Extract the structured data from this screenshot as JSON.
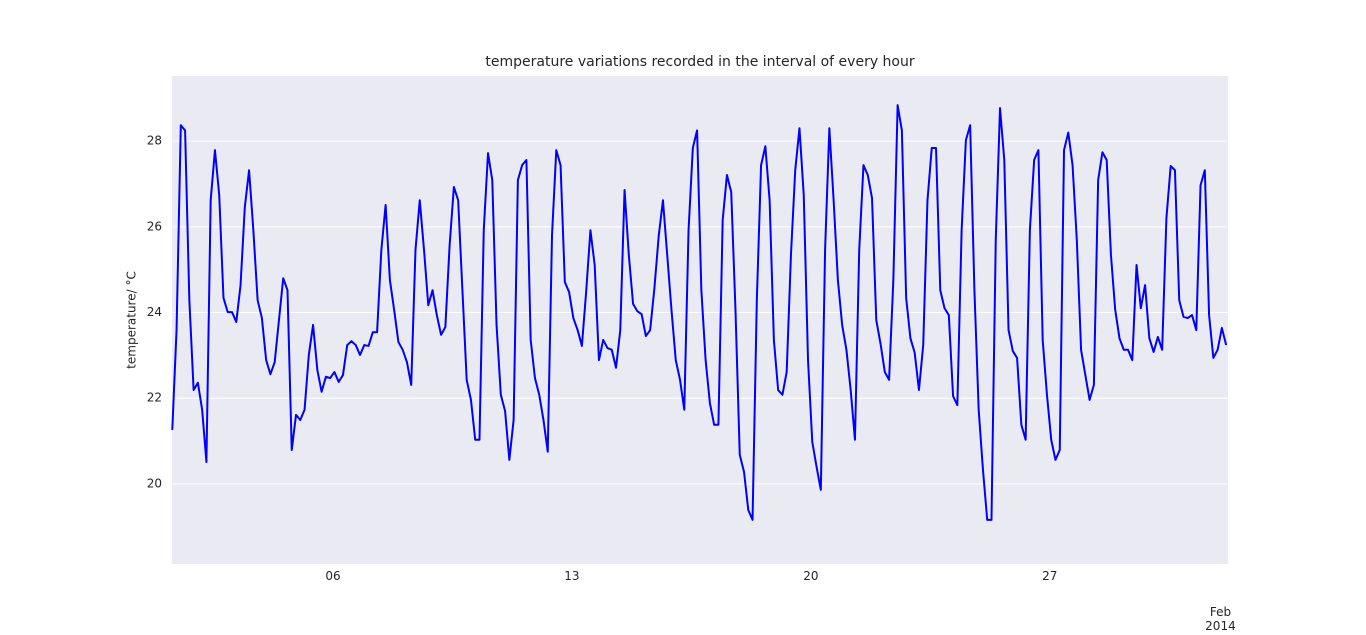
{
  "chart_data": {
    "type": "line",
    "title": "temperature variations recorded in the interval of every hour",
    "ylabel": "temperature/ °C",
    "x": [
      7,
      10,
      13,
      16,
      19,
      22,
      25,
      28,
      31,
      34,
      37,
      40,
      43,
      46,
      49,
      52,
      55,
      58,
      61,
      64,
      67,
      70,
      73,
      76,
      79,
      82,
      85,
      88,
      91,
      94,
      97,
      100,
      103,
      106,
      109,
      112,
      115,
      118,
      121,
      124,
      127,
      130,
      133,
      136,
      139,
      142,
      145,
      148,
      151,
      154,
      157,
      160,
      163,
      166,
      169,
      172,
      175,
      178,
      181,
      184,
      187,
      190,
      193,
      196,
      199,
      202,
      205,
      208,
      211,
      214,
      217,
      220,
      223,
      226,
      229,
      232,
      235,
      238,
      241,
      244,
      247,
      250,
      253,
      256,
      259,
      262,
      265,
      268,
      271,
      274,
      277,
      280,
      283,
      286,
      289,
      292,
      295,
      298,
      301,
      304,
      307,
      310,
      313,
      316,
      319,
      322,
      325,
      328,
      331,
      334,
      337,
      340,
      343,
      346,
      349,
      352,
      355,
      358,
      361,
      364,
      367,
      370,
      373,
      376,
      379,
      382,
      385,
      388,
      391,
      394,
      397,
      400,
      403,
      406,
      409,
      412,
      415,
      418,
      421,
      424,
      427,
      430,
      433,
      436,
      439,
      442,
      445,
      448,
      451,
      454,
      457,
      460,
      463,
      466,
      469,
      472,
      475,
      478,
      481,
      484,
      487,
      490,
      493,
      496,
      499,
      502,
      505,
      508,
      511,
      514,
      517,
      520,
      523,
      526,
      529,
      532,
      535,
      538,
      541,
      544,
      547,
      550,
      553,
      556,
      559,
      562,
      565,
      568,
      571,
      574,
      577,
      580,
      583,
      586,
      589,
      592,
      595,
      598,
      601,
      604,
      607,
      610,
      613,
      616,
      619,
      622,
      625,
      628,
      631,
      634,
      637,
      640,
      643,
      646,
      649,
      652,
      655,
      658,
      661,
      664,
      667,
      670,
      673,
      676,
      679,
      682,
      685,
      688,
      691,
      694,
      697,
      700,
      703,
      706,
      709,
      712,
      715,
      718,
      721,
      724,
      727,
      730,
      733,
      736,
      739,
      742,
      745,
      748
    ],
    "series": [
      {
        "name": "temperature",
        "color": "#0000ff",
        "values": [
          21.26,
          23.59,
          28.37,
          28.25,
          24.29,
          22.19,
          22.36,
          21.73,
          20.51,
          26.62,
          27.79,
          26.74,
          24.34,
          24.01,
          24.01,
          23.78,
          24.64,
          26.46,
          27.32,
          25.92,
          24.29,
          23.87,
          22.89,
          22.56,
          22.84,
          23.82,
          24.8,
          24.52,
          20.79,
          21.61,
          21.49,
          21.73,
          23.01,
          23.71,
          22.66,
          22.15,
          22.5,
          22.47,
          22.61,
          22.38,
          22.54,
          23.24,
          23.33,
          23.24,
          23.01,
          23.24,
          23.22,
          23.54,
          23.54,
          25.46,
          26.51,
          24.76,
          24.06,
          23.31,
          23.13,
          22.84,
          22.31,
          25.46,
          26.62,
          25.46,
          24.17,
          24.52,
          23.94,
          23.48,
          23.66,
          25.57,
          26.93,
          26.62,
          24.52,
          22.43,
          21.96,
          21.03,
          21.03,
          25.92,
          27.72,
          27.09,
          23.71,
          22.08,
          21.7,
          20.56,
          21.49,
          27.09,
          27.44,
          27.56,
          23.36,
          22.47,
          22.08,
          21.49,
          20.75,
          25.81,
          27.79,
          27.44,
          24.71,
          24.48,
          23.87,
          23.59,
          23.22,
          24.48,
          25.92,
          25.11,
          22.89,
          23.36,
          23.17,
          23.13,
          22.71,
          23.59,
          26.86,
          25.34,
          24.2,
          24.03,
          23.96,
          23.45,
          23.59,
          24.57,
          25.78,
          26.62,
          25.34,
          24.06,
          22.89,
          22.43,
          21.73,
          25.92,
          27.84,
          28.25,
          24.52,
          22.89,
          21.89,
          21.38,
          21.38,
          26.16,
          27.21,
          26.81,
          24.06,
          20.68,
          20.28,
          19.39,
          19.16,
          24.29,
          27.44,
          27.88,
          26.62,
          23.36,
          22.19,
          22.08,
          22.61,
          25.34,
          27.32,
          28.3,
          26.74,
          22.89,
          20.98,
          20.4,
          19.86,
          25.46,
          28.3,
          26.62,
          24.76,
          23.71,
          23.13,
          22.19,
          21.03,
          25.46,
          27.44,
          27.21,
          26.67,
          23.82,
          23.27,
          22.61,
          22.43,
          24.76,
          28.84,
          28.25,
          24.34,
          23.4,
          23.06,
          22.19,
          23.24,
          26.62,
          27.84,
          27.84,
          24.52,
          24.1,
          23.94,
          22.05,
          21.84,
          25.92,
          28.02,
          28.37,
          24.52,
          21.73,
          20.33,
          19.16,
          19.16,
          25.69,
          28.77,
          27.56,
          23.59,
          23.1,
          22.94,
          21.38,
          21.03,
          25.92,
          27.56,
          27.79,
          23.36,
          22.08,
          21.03,
          20.56,
          20.79,
          27.79,
          28.2,
          27.44,
          25.69,
          23.13,
          22.54,
          21.96,
          22.31,
          27.09,
          27.74,
          27.56,
          25.34,
          24.06,
          23.4,
          23.13,
          23.13,
          22.89,
          25.11,
          24.1,
          24.64,
          23.4,
          23.08,
          23.43,
          23.13,
          26.2,
          27.42,
          27.32,
          24.29,
          23.9,
          23.87,
          23.94,
          23.59,
          26.97,
          27.32,
          23.94,
          22.94,
          23.13,
          23.64,
          23.24
        ]
      }
    ],
    "xlim": [
      6.8,
      749.3
    ],
    "xticks": [
      {
        "value": 120,
        "label": "06"
      },
      {
        "value": 288,
        "label": "13"
      },
      {
        "value": 456,
        "label": "20"
      },
      {
        "value": 624,
        "label": "27"
      },
      {
        "value": 744,
        "label": "Feb\n2014"
      }
    ],
    "ylim": [
      18.13,
      29.52
    ],
    "yticks": [
      20,
      22,
      24,
      26,
      28
    ],
    "grid": true
  }
}
